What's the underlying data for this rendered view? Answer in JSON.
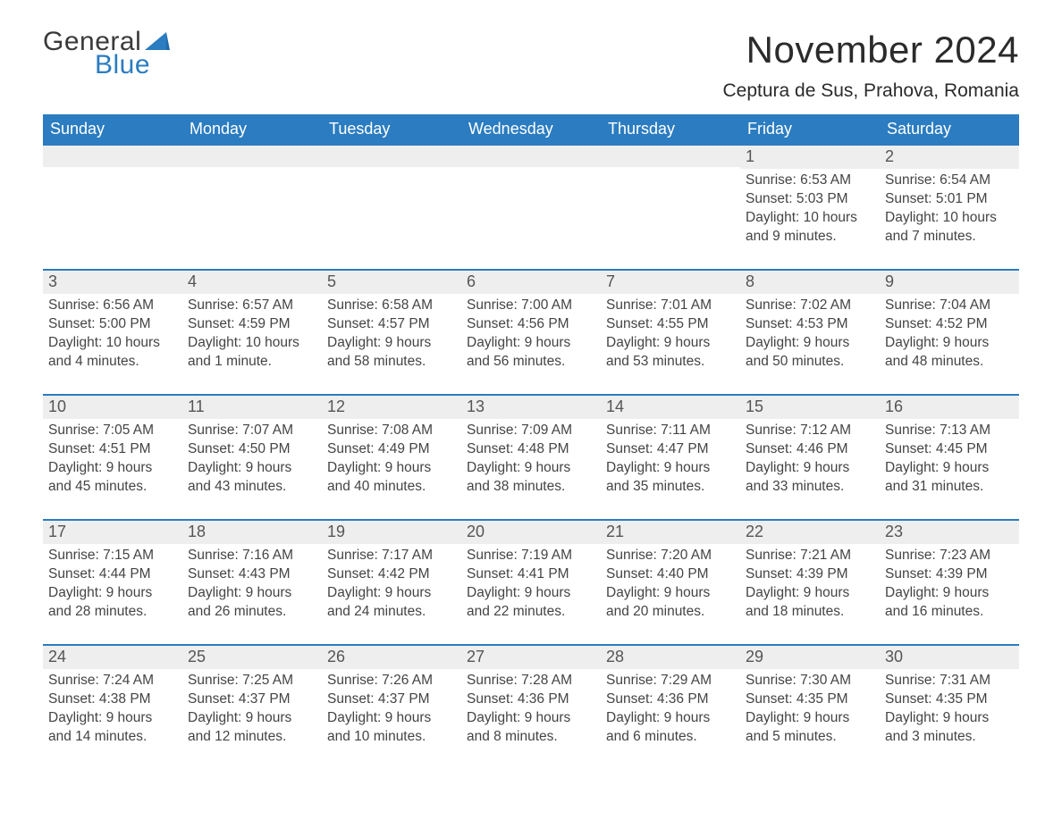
{
  "brand": {
    "line1": "General",
    "line2": "Blue",
    "accent_color": "#2b7cc0"
  },
  "header": {
    "month": "November 2024",
    "location": "Ceptura de Sus, Prahova, Romania"
  },
  "colors": {
    "header_bg": "#2b7cc0",
    "header_text": "#ffffff",
    "daynum_bg": "#eeeeee",
    "rule": "#2b7cc0",
    "page_bg": "#ffffff",
    "text": "#2b2b2b"
  },
  "weekdays": [
    "Sunday",
    "Monday",
    "Tuesday",
    "Wednesday",
    "Thursday",
    "Friday",
    "Saturday"
  ],
  "weeks": [
    [
      {
        "day": "",
        "sunrise": "",
        "sunset": "",
        "daylight": ""
      },
      {
        "day": "",
        "sunrise": "",
        "sunset": "",
        "daylight": ""
      },
      {
        "day": "",
        "sunrise": "",
        "sunset": "",
        "daylight": ""
      },
      {
        "day": "",
        "sunrise": "",
        "sunset": "",
        "daylight": ""
      },
      {
        "day": "",
        "sunrise": "",
        "sunset": "",
        "daylight": ""
      },
      {
        "day": "1",
        "sunrise": "Sunrise: 6:53 AM",
        "sunset": "Sunset: 5:03 PM",
        "daylight": "Daylight: 10 hours and 9 minutes."
      },
      {
        "day": "2",
        "sunrise": "Sunrise: 6:54 AM",
        "sunset": "Sunset: 5:01 PM",
        "daylight": "Daylight: 10 hours and 7 minutes."
      }
    ],
    [
      {
        "day": "3",
        "sunrise": "Sunrise: 6:56 AM",
        "sunset": "Sunset: 5:00 PM",
        "daylight": "Daylight: 10 hours and 4 minutes."
      },
      {
        "day": "4",
        "sunrise": "Sunrise: 6:57 AM",
        "sunset": "Sunset: 4:59 PM",
        "daylight": "Daylight: 10 hours and 1 minute."
      },
      {
        "day": "5",
        "sunrise": "Sunrise: 6:58 AM",
        "sunset": "Sunset: 4:57 PM",
        "daylight": "Daylight: 9 hours and 58 minutes."
      },
      {
        "day": "6",
        "sunrise": "Sunrise: 7:00 AM",
        "sunset": "Sunset: 4:56 PM",
        "daylight": "Daylight: 9 hours and 56 minutes."
      },
      {
        "day": "7",
        "sunrise": "Sunrise: 7:01 AM",
        "sunset": "Sunset: 4:55 PM",
        "daylight": "Daylight: 9 hours and 53 minutes."
      },
      {
        "day": "8",
        "sunrise": "Sunrise: 7:02 AM",
        "sunset": "Sunset: 4:53 PM",
        "daylight": "Daylight: 9 hours and 50 minutes."
      },
      {
        "day": "9",
        "sunrise": "Sunrise: 7:04 AM",
        "sunset": "Sunset: 4:52 PM",
        "daylight": "Daylight: 9 hours and 48 minutes."
      }
    ],
    [
      {
        "day": "10",
        "sunrise": "Sunrise: 7:05 AM",
        "sunset": "Sunset: 4:51 PM",
        "daylight": "Daylight: 9 hours and 45 minutes."
      },
      {
        "day": "11",
        "sunrise": "Sunrise: 7:07 AM",
        "sunset": "Sunset: 4:50 PM",
        "daylight": "Daylight: 9 hours and 43 minutes."
      },
      {
        "day": "12",
        "sunrise": "Sunrise: 7:08 AM",
        "sunset": "Sunset: 4:49 PM",
        "daylight": "Daylight: 9 hours and 40 minutes."
      },
      {
        "day": "13",
        "sunrise": "Sunrise: 7:09 AM",
        "sunset": "Sunset: 4:48 PM",
        "daylight": "Daylight: 9 hours and 38 minutes."
      },
      {
        "day": "14",
        "sunrise": "Sunrise: 7:11 AM",
        "sunset": "Sunset: 4:47 PM",
        "daylight": "Daylight: 9 hours and 35 minutes."
      },
      {
        "day": "15",
        "sunrise": "Sunrise: 7:12 AM",
        "sunset": "Sunset: 4:46 PM",
        "daylight": "Daylight: 9 hours and 33 minutes."
      },
      {
        "day": "16",
        "sunrise": "Sunrise: 7:13 AM",
        "sunset": "Sunset: 4:45 PM",
        "daylight": "Daylight: 9 hours and 31 minutes."
      }
    ],
    [
      {
        "day": "17",
        "sunrise": "Sunrise: 7:15 AM",
        "sunset": "Sunset: 4:44 PM",
        "daylight": "Daylight: 9 hours and 28 minutes."
      },
      {
        "day": "18",
        "sunrise": "Sunrise: 7:16 AM",
        "sunset": "Sunset: 4:43 PM",
        "daylight": "Daylight: 9 hours and 26 minutes."
      },
      {
        "day": "19",
        "sunrise": "Sunrise: 7:17 AM",
        "sunset": "Sunset: 4:42 PM",
        "daylight": "Daylight: 9 hours and 24 minutes."
      },
      {
        "day": "20",
        "sunrise": "Sunrise: 7:19 AM",
        "sunset": "Sunset: 4:41 PM",
        "daylight": "Daylight: 9 hours and 22 minutes."
      },
      {
        "day": "21",
        "sunrise": "Sunrise: 7:20 AM",
        "sunset": "Sunset: 4:40 PM",
        "daylight": "Daylight: 9 hours and 20 minutes."
      },
      {
        "day": "22",
        "sunrise": "Sunrise: 7:21 AM",
        "sunset": "Sunset: 4:39 PM",
        "daylight": "Daylight: 9 hours and 18 minutes."
      },
      {
        "day": "23",
        "sunrise": "Sunrise: 7:23 AM",
        "sunset": "Sunset: 4:39 PM",
        "daylight": "Daylight: 9 hours and 16 minutes."
      }
    ],
    [
      {
        "day": "24",
        "sunrise": "Sunrise: 7:24 AM",
        "sunset": "Sunset: 4:38 PM",
        "daylight": "Daylight: 9 hours and 14 minutes."
      },
      {
        "day": "25",
        "sunrise": "Sunrise: 7:25 AM",
        "sunset": "Sunset: 4:37 PM",
        "daylight": "Daylight: 9 hours and 12 minutes."
      },
      {
        "day": "26",
        "sunrise": "Sunrise: 7:26 AM",
        "sunset": "Sunset: 4:37 PM",
        "daylight": "Daylight: 9 hours and 10 minutes."
      },
      {
        "day": "27",
        "sunrise": "Sunrise: 7:28 AM",
        "sunset": "Sunset: 4:36 PM",
        "daylight": "Daylight: 9 hours and 8 minutes."
      },
      {
        "day": "28",
        "sunrise": "Sunrise: 7:29 AM",
        "sunset": "Sunset: 4:36 PM",
        "daylight": "Daylight: 9 hours and 6 minutes."
      },
      {
        "day": "29",
        "sunrise": "Sunrise: 7:30 AM",
        "sunset": "Sunset: 4:35 PM",
        "daylight": "Daylight: 9 hours and 5 minutes."
      },
      {
        "day": "30",
        "sunrise": "Sunrise: 7:31 AM",
        "sunset": "Sunset: 4:35 PM",
        "daylight": "Daylight: 9 hours and 3 minutes."
      }
    ]
  ]
}
